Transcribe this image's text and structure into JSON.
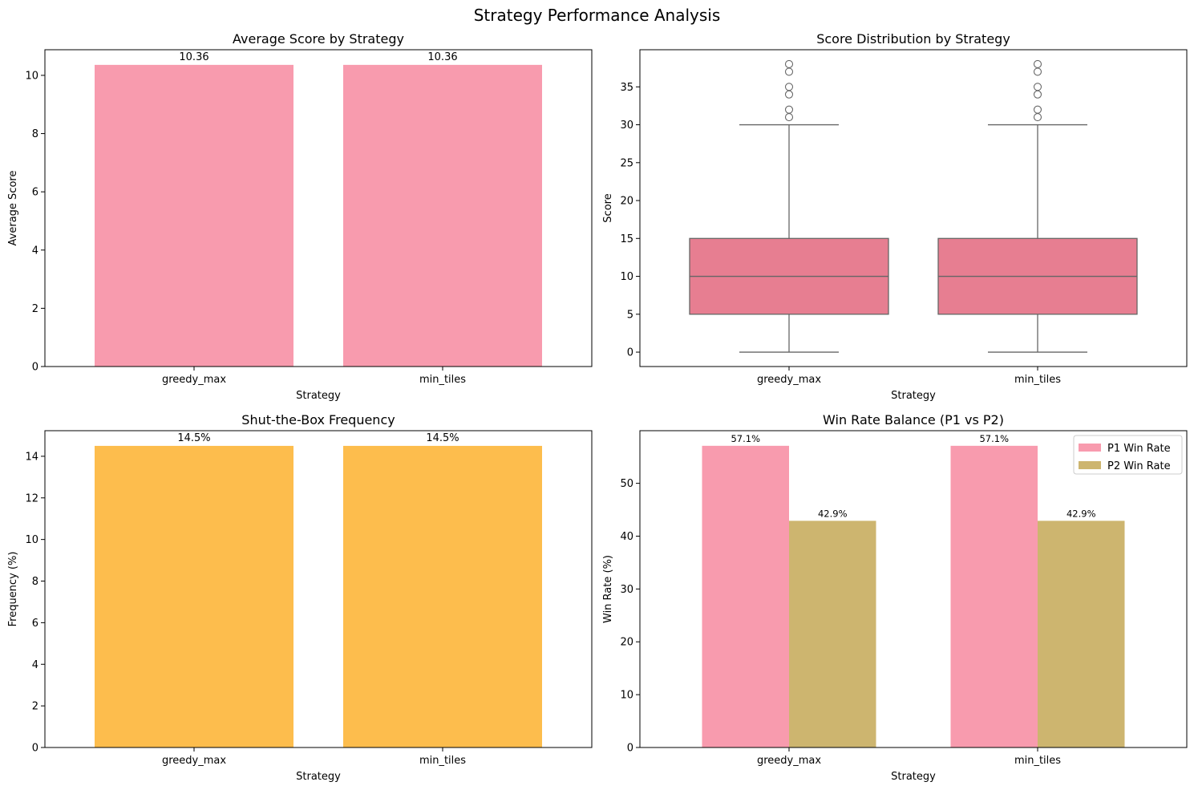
{
  "figure_title": "Strategy Performance Analysis",
  "chart_data": [
    {
      "id": "avg",
      "type": "bar",
      "title": "Average Score by Strategy",
      "xlabel": "Strategy",
      "ylabel": "Average Score",
      "categories": [
        "greedy_max",
        "min_tiles"
      ],
      "values": [
        10.36,
        10.36
      ],
      "data_labels": [
        "10.36",
        "10.36"
      ],
      "ylim": [
        0,
        10.88
      ],
      "yticks": [
        0,
        2,
        4,
        6,
        8,
        10
      ],
      "color": "#f89bae"
    },
    {
      "id": "dist",
      "type": "box",
      "title": "Score Distribution by Strategy",
      "xlabel": "Strategy",
      "ylabel": "Score",
      "categories": [
        "greedy_max",
        "min_tiles"
      ],
      "boxes": [
        {
          "category": "greedy_max",
          "whisker_low": 0,
          "q1": 5,
          "median": 10,
          "q3": 15,
          "whisker_high": 30,
          "outliers": [
            31,
            32,
            34,
            35,
            37,
            38
          ]
        },
        {
          "category": "min_tiles",
          "whisker_low": 0,
          "q1": 5,
          "median": 10,
          "q3": 15,
          "whisker_high": 30,
          "outliers": [
            31,
            32,
            34,
            35,
            37,
            38
          ]
        }
      ],
      "ylim": [
        -1.9,
        39.9
      ],
      "yticks": [
        0,
        5,
        10,
        15,
        20,
        25,
        30,
        35
      ],
      "color": "#e77e91",
      "line_color": "#666666"
    },
    {
      "id": "stb",
      "type": "bar",
      "title": "Shut-the-Box Frequency",
      "xlabel": "Strategy",
      "ylabel": "Frequency (%)",
      "categories": [
        "greedy_max",
        "min_tiles"
      ],
      "values": [
        14.5,
        14.5
      ],
      "data_labels": [
        "14.5%",
        "14.5%"
      ],
      "ylim": [
        0,
        15.23
      ],
      "yticks": [
        0,
        2,
        4,
        6,
        8,
        10,
        12,
        14
      ],
      "color": "#fdbd4d"
    },
    {
      "id": "win",
      "type": "grouped_bar",
      "title": "Win Rate Balance (P1 vs P2)",
      "xlabel": "Strategy",
      "ylabel": "Win Rate (%)",
      "categories": [
        "greedy_max",
        "min_tiles"
      ],
      "series": [
        {
          "name": "P1 Win Rate",
          "values": [
            57.1,
            57.1
          ],
          "data_labels": [
            "57.1%",
            "57.1%"
          ],
          "color": "#f89bae"
        },
        {
          "name": "P2 Win Rate",
          "values": [
            42.9,
            42.9
          ],
          "data_labels": [
            "42.9%",
            "42.9%"
          ],
          "color": "#cdb56f"
        }
      ],
      "ylim": [
        0,
        59.96
      ],
      "yticks": [
        0,
        10,
        20,
        30,
        40,
        50
      ],
      "legend": "top-right"
    }
  ]
}
